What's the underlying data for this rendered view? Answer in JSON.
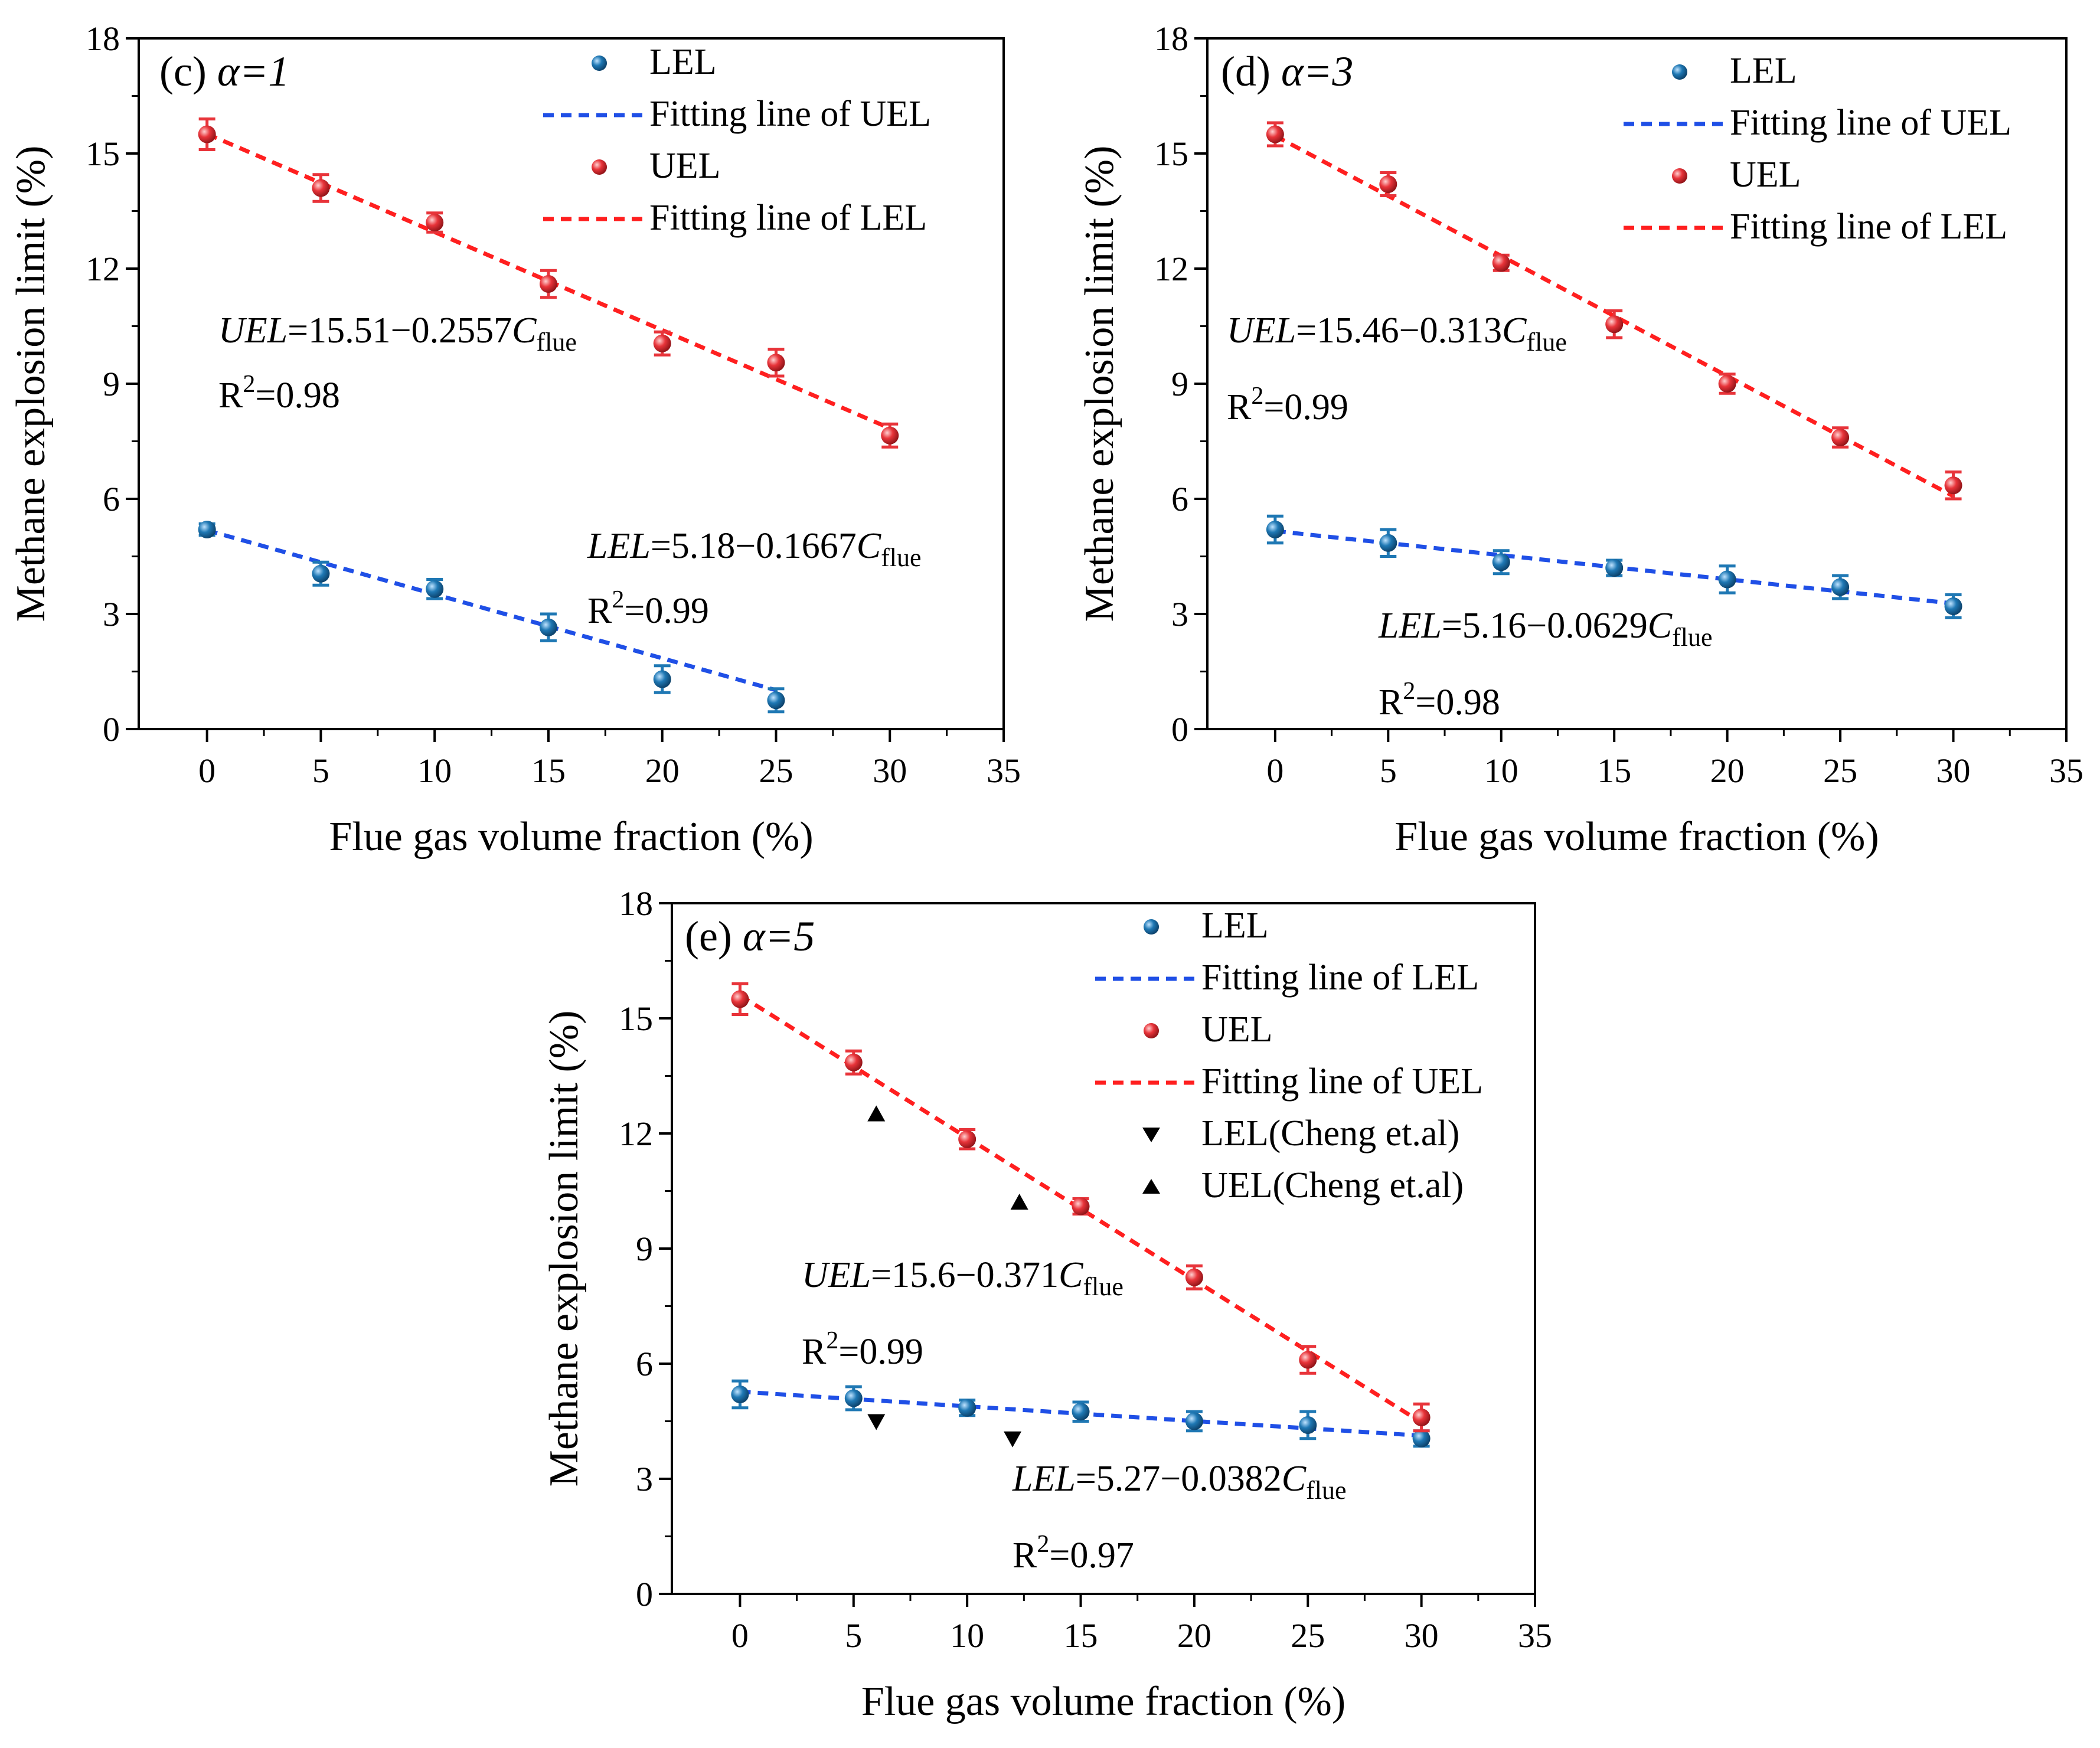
{
  "chart_data": [
    {
      "type": "scatter",
      "panel_label": "(c) ",
      "alpha_text": "α=1",
      "xlabel": "Flue gas volume fraction (%)",
      "ylabel": "Methane explosion limit (%)",
      "xlim": [
        -3,
        35
      ],
      "ylim": [
        0,
        18
      ],
      "xticks": [
        "0",
        "5",
        "10",
        "15",
        "20",
        "25",
        "30",
        "35"
      ],
      "yticks": [
        "0",
        "3",
        "6",
        "9",
        "12",
        "15",
        "18"
      ],
      "colors": {
        "lel": "#1f78b4",
        "uel": "#e8343a",
        "lel_fit": "#1f4fe6",
        "uel_fit": "#ff1f1f"
      },
      "series": [
        {
          "name": "LEL",
          "x": [
            0,
            5,
            10,
            15,
            20,
            25
          ],
          "y": [
            5.2,
            4.05,
            3.65,
            2.65,
            1.3,
            0.75
          ],
          "err": [
            0.15,
            0.3,
            0.25,
            0.35,
            0.35,
            0.3
          ]
        },
        {
          "name": "UEL",
          "x": [
            0,
            5,
            10,
            15,
            20,
            25,
            30
          ],
          "y": [
            15.5,
            14.1,
            13.2,
            11.6,
            10.05,
            9.55,
            7.65
          ],
          "err": [
            0.4,
            0.35,
            0.25,
            0.35,
            0.3,
            0.35,
            0.3
          ]
        }
      ],
      "fits": [
        {
          "name": "LEL",
          "intercept": 5.18,
          "slope": -0.1667,
          "xrange": [
            0,
            25
          ]
        },
        {
          "name": "UEL",
          "intercept": 15.51,
          "slope": -0.2557,
          "xrange": [
            0,
            30
          ]
        }
      ],
      "legend": [
        "LEL",
        "Fitting line of UEL",
        "UEL",
        "Fitting line of LEL"
      ],
      "annotations": {
        "uel_eq": {
          "var": "UEL",
          "body": "=15.51−0.2557",
          "c": "C",
          "sub": "flue",
          "r_head": "R",
          "r_sup": "2",
          "r_tail": "=0.98"
        },
        "lel_eq": {
          "var": "LEL",
          "body": "=5.18−0.1667",
          "c": "C",
          "sub": "flue",
          "r_head": "R",
          "r_sup": "2",
          "r_tail": "=0.99"
        }
      }
    },
    {
      "type": "scatter",
      "panel_label": "(d) ",
      "alpha_text": "α=3",
      "xlabel": "Flue gas volume fraction (%)",
      "ylabel": "Methane explosion limit (%)",
      "xlim": [
        -3,
        35
      ],
      "ylim": [
        0,
        18
      ],
      "xticks": [
        "0",
        "5",
        "10",
        "15",
        "20",
        "25",
        "30",
        "35"
      ],
      "yticks": [
        "0",
        "3",
        "6",
        "9",
        "12",
        "15",
        "18"
      ],
      "colors": {
        "lel": "#1f78b4",
        "uel": "#e8343a",
        "lel_fit": "#1f4fe6",
        "uel_fit": "#ff1f1f"
      },
      "series": [
        {
          "name": "LEL",
          "x": [
            0,
            5,
            10,
            15,
            20,
            25,
            30
          ],
          "y": [
            5.2,
            4.85,
            4.35,
            4.2,
            3.9,
            3.7,
            3.2
          ],
          "err": [
            0.35,
            0.35,
            0.3,
            0.2,
            0.35,
            0.3,
            0.3
          ]
        },
        {
          "name": "UEL",
          "x": [
            0,
            5,
            10,
            15,
            20,
            25,
            30
          ],
          "y": [
            15.5,
            14.2,
            12.15,
            10.55,
            9.0,
            7.6,
            6.35
          ],
          "err": [
            0.3,
            0.3,
            0.2,
            0.35,
            0.25,
            0.25,
            0.35
          ]
        }
      ],
      "fits": [
        {
          "name": "LEL",
          "intercept": 5.16,
          "slope": -0.0629,
          "xrange": [
            0,
            30
          ]
        },
        {
          "name": "UEL",
          "intercept": 15.46,
          "slope": -0.313,
          "xrange": [
            0,
            30
          ]
        }
      ],
      "legend": [
        "LEL",
        "Fitting line of UEL",
        "UEL",
        "Fitting line of LEL"
      ],
      "annotations": {
        "uel_eq": {
          "var": "UEL",
          "body": "=15.46−0.313",
          "c": "C",
          "sub": "flue",
          "r_head": "R",
          "r_sup": "2",
          "r_tail": "=0.99"
        },
        "lel_eq": {
          "var": "LEL",
          "body": "=5.16−0.0629",
          "c": "C",
          "sub": "flue",
          "r_head": "R",
          "r_sup": "2",
          "r_tail": "=0.98"
        }
      }
    },
    {
      "type": "scatter",
      "panel_label": "(e) ",
      "alpha_text": "α=5",
      "xlabel": "Flue gas volume fraction (%)",
      "ylabel": "Methane explosion limit (%)",
      "xlim": [
        -3,
        35
      ],
      "ylim": [
        0,
        18
      ],
      "xticks": [
        "0",
        "5",
        "10",
        "15",
        "20",
        "25",
        "30",
        "35"
      ],
      "yticks": [
        "0",
        "3",
        "6",
        "9",
        "12",
        "15",
        "18"
      ],
      "colors": {
        "lel": "#1f78b4",
        "uel": "#e8343a",
        "lel_fit": "#1f4fe6",
        "uel_fit": "#ff1f1f",
        "ref": "#000000"
      },
      "series": [
        {
          "name": "LEL",
          "x": [
            0,
            5,
            10,
            15,
            20,
            25,
            30
          ],
          "y": [
            5.2,
            5.1,
            4.85,
            4.75,
            4.5,
            4.4,
            4.05
          ],
          "err": [
            0.35,
            0.3,
            0.2,
            0.25,
            0.25,
            0.35,
            0.2
          ]
        },
        {
          "name": "UEL",
          "x": [
            0,
            5,
            10,
            15,
            20,
            25,
            30
          ],
          "y": [
            15.5,
            13.85,
            11.85,
            10.1,
            8.25,
            6.1,
            4.6
          ],
          "err": [
            0.4,
            0.3,
            0.25,
            0.2,
            0.3,
            0.35,
            0.35
          ]
        },
        {
          "name": "LEL(Cheng et.al)",
          "marker": "triangle-down",
          "x": [
            6,
            12
          ],
          "y": [
            4.5,
            4.05
          ]
        },
        {
          "name": "UEL(Cheng et.al)",
          "marker": "triangle-up",
          "x": [
            6,
            12.3
          ],
          "y": [
            12.5,
            10.2
          ]
        }
      ],
      "fits": [
        {
          "name": "LEL",
          "intercept": 5.27,
          "slope": -0.0382,
          "xrange": [
            0,
            30
          ]
        },
        {
          "name": "UEL",
          "intercept": 15.6,
          "slope": -0.371,
          "xrange": [
            0,
            30
          ]
        }
      ],
      "legend": [
        "LEL",
        "Fitting line of LEL",
        "UEL",
        "Fitting line of UEL",
        "LEL(Cheng et.al)",
        "UEL(Cheng et.al)"
      ],
      "annotations": {
        "uel_eq": {
          "var": "UEL",
          "body": "=15.6−0.371",
          "c": "C",
          "sub": "flue",
          "r_head": "R",
          "r_sup": "2",
          "r_tail": "=0.99"
        },
        "lel_eq": {
          "var": "LEL",
          "body": "=5.27−0.0382",
          "c": "C",
          "sub": "flue",
          "r_head": "R",
          "r_sup": "2",
          "r_tail": "=0.97"
        }
      }
    }
  ]
}
